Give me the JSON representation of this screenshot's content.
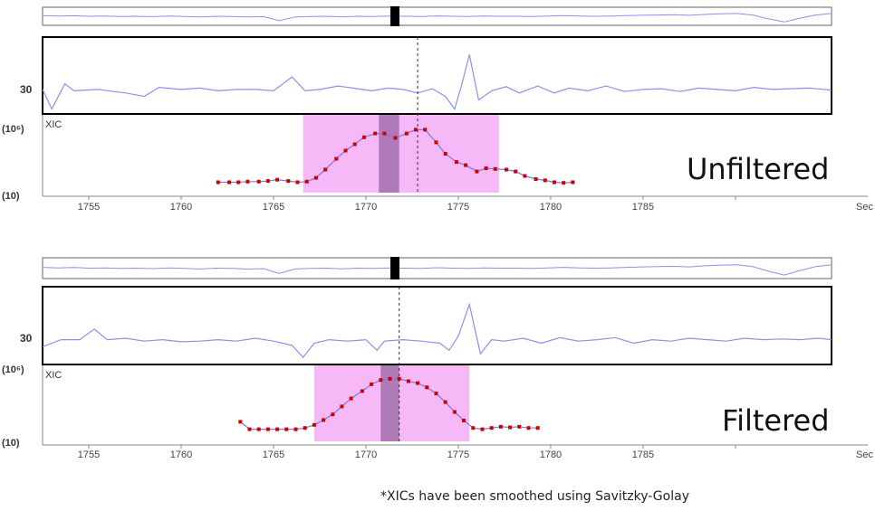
{
  "footnote": "*XICs have been smoothed using Savitzky-Golay",
  "colors": {
    "trace": "#8c8ff0",
    "xic_line": "#7a7ad8",
    "xic_point": "#cc0000",
    "window_fill": "#f6b8f6",
    "center_fill": "#b07ab8",
    "frame": "#000000",
    "axis_text": "#444444"
  },
  "chart_data": [
    {
      "type": "line",
      "name": "Unfiltered",
      "title": "Unfiltered",
      "ylabel_top": "(10⁶)",
      "ylabel_bottom": "(10)",
      "xic_label": "XIC",
      "trace_label": "30",
      "xlabel": "Sec",
      "xlim": [
        1752.5,
        1795.2
      ],
      "x_ticks": [
        1755,
        1760,
        1765,
        1770,
        1775,
        1780,
        1785,
        1790
      ],
      "x_tick_labels": [
        "1755",
        "1760",
        "1765",
        "1770",
        "1775",
        "1780",
        "1785",
        "Sec"
      ],
      "integration_window": [
        1766.6,
        1777.2
      ],
      "center_band": [
        1770.7,
        1771.8
      ],
      "marker_x": 1772.8,
      "xic_points": [
        [
          1762.0,
          0.05
        ],
        [
          1762.6,
          0.05
        ],
        [
          1763.1,
          0.05
        ],
        [
          1763.6,
          0.06
        ],
        [
          1764.2,
          0.06
        ],
        [
          1764.7,
          0.07
        ],
        [
          1765.2,
          0.09
        ],
        [
          1765.8,
          0.07
        ],
        [
          1766.3,
          0.05
        ],
        [
          1766.8,
          0.06
        ],
        [
          1767.3,
          0.12
        ],
        [
          1767.8,
          0.25
        ],
        [
          1768.4,
          0.42
        ],
        [
          1768.9,
          0.55
        ],
        [
          1769.4,
          0.65
        ],
        [
          1769.9,
          0.76
        ],
        [
          1770.5,
          0.82
        ],
        [
          1771.0,
          0.82
        ],
        [
          1771.6,
          0.75
        ],
        [
          1772.2,
          0.82
        ],
        [
          1772.7,
          0.88
        ],
        [
          1773.2,
          0.88
        ],
        [
          1773.8,
          0.68
        ],
        [
          1774.3,
          0.5
        ],
        [
          1774.9,
          0.37
        ],
        [
          1775.4,
          0.32
        ],
        [
          1776.0,
          0.22
        ],
        [
          1776.5,
          0.27
        ],
        [
          1777.0,
          0.26
        ],
        [
          1777.6,
          0.25
        ],
        [
          1778.1,
          0.22
        ],
        [
          1778.6,
          0.15
        ],
        [
          1779.2,
          0.1
        ],
        [
          1779.7,
          0.08
        ],
        [
          1780.2,
          0.05
        ],
        [
          1780.7,
          0.04
        ],
        [
          1781.2,
          0.05
        ]
      ],
      "overview_trace": [
        0.55,
        0.52,
        0.54,
        0.5,
        0.52,
        0.48,
        0.5,
        0.47,
        0.52,
        0.48,
        0.45,
        0.5,
        0.48,
        0.44,
        0.47,
        0.15,
        0.45,
        0.48,
        0.5,
        0.46,
        0.5,
        0.48,
        0.52,
        0.5,
        0.48,
        0.53,
        0.5,
        0.48,
        0.52,
        0.5,
        0.5,
        0.48,
        0.52,
        0.55,
        0.52,
        0.5,
        0.52,
        0.55,
        0.58,
        0.6,
        0.62,
        0.58,
        0.65,
        0.7,
        0.72,
        0.6,
        0.3,
        0.05,
        0.35,
        0.6,
        0.72
      ],
      "detail_trace": [
        [
          1752.5,
          0.3
        ],
        [
          1753.0,
          0.02
        ],
        [
          1753.7,
          0.38
        ],
        [
          1754.2,
          0.28
        ],
        [
          1755.5,
          0.3
        ],
        [
          1757.0,
          0.25
        ],
        [
          1758.0,
          0.2
        ],
        [
          1758.8,
          0.33
        ],
        [
          1760.0,
          0.3
        ],
        [
          1761.0,
          0.32
        ],
        [
          1762.0,
          0.28
        ],
        [
          1763.0,
          0.3
        ],
        [
          1764.0,
          0.3
        ],
        [
          1765.0,
          0.28
        ],
        [
          1765.6,
          0.4
        ],
        [
          1766.0,
          0.48
        ],
        [
          1766.7,
          0.28
        ],
        [
          1767.5,
          0.3
        ],
        [
          1768.5,
          0.35
        ],
        [
          1769.3,
          0.32
        ],
        [
          1770.3,
          0.28
        ],
        [
          1771.2,
          0.32
        ],
        [
          1772.0,
          0.3
        ],
        [
          1772.8,
          0.25
        ],
        [
          1773.6,
          0.31
        ],
        [
          1774.3,
          0.2
        ],
        [
          1774.8,
          0.02
        ],
        [
          1775.2,
          0.38
        ],
        [
          1775.6,
          0.8
        ],
        [
          1776.1,
          0.15
        ],
        [
          1776.8,
          0.28
        ],
        [
          1777.6,
          0.34
        ],
        [
          1778.3,
          0.25
        ],
        [
          1779.3,
          0.35
        ],
        [
          1780.2,
          0.25
        ],
        [
          1781.0,
          0.32
        ],
        [
          1782.0,
          0.28
        ],
        [
          1783.0,
          0.35
        ],
        [
          1784.0,
          0.27
        ],
        [
          1785.0,
          0.3
        ],
        [
          1786.0,
          0.31
        ],
        [
          1787.0,
          0.27
        ],
        [
          1788.0,
          0.32
        ],
        [
          1789.0,
          0.3
        ],
        [
          1790.0,
          0.28
        ],
        [
          1791.0,
          0.33
        ],
        [
          1792.0,
          0.3
        ],
        [
          1793.0,
          0.31
        ],
        [
          1794.0,
          0.32
        ],
        [
          1795.2,
          0.29
        ]
      ]
    },
    {
      "type": "line",
      "name": "Filtered",
      "title": "Filtered",
      "ylabel_top": "(10⁶)",
      "ylabel_bottom": "(10)",
      "xic_label": "XIC",
      "trace_label": "30",
      "xlabel": "Sec",
      "xlim": [
        1752.5,
        1795.2
      ],
      "x_ticks": [
        1755,
        1760,
        1765,
        1770,
        1775,
        1780,
        1785,
        1790
      ],
      "x_tick_labels": [
        "1755",
        "1760",
        "1765",
        "1770",
        "1775",
        "1780",
        "1785",
        "Sec"
      ],
      "integration_window": [
        1767.2,
        1775.6
      ],
      "center_band": [
        1770.8,
        1771.8
      ],
      "marker_x": 1771.8,
      "xic_points": [
        [
          1763.2,
          0.2
        ],
        [
          1763.7,
          0.08
        ],
        [
          1764.2,
          0.08
        ],
        [
          1764.7,
          0.08
        ],
        [
          1765.2,
          0.08
        ],
        [
          1765.7,
          0.08
        ],
        [
          1766.2,
          0.08
        ],
        [
          1766.7,
          0.1
        ],
        [
          1767.2,
          0.15
        ],
        [
          1767.7,
          0.23
        ],
        [
          1768.2,
          0.32
        ],
        [
          1768.7,
          0.45
        ],
        [
          1769.2,
          0.58
        ],
        [
          1769.8,
          0.7
        ],
        [
          1770.3,
          0.81
        ],
        [
          1770.8,
          0.88
        ],
        [
          1771.3,
          0.9
        ],
        [
          1771.8,
          0.9
        ],
        [
          1772.3,
          0.86
        ],
        [
          1772.8,
          0.83
        ],
        [
          1773.3,
          0.76
        ],
        [
          1773.8,
          0.66
        ],
        [
          1774.3,
          0.52
        ],
        [
          1774.8,
          0.36
        ],
        [
          1775.3,
          0.22
        ],
        [
          1775.8,
          0.1
        ],
        [
          1776.3,
          0.08
        ],
        [
          1776.8,
          0.1
        ],
        [
          1777.3,
          0.12
        ],
        [
          1777.8,
          0.11
        ],
        [
          1778.3,
          0.12
        ],
        [
          1778.8,
          0.1
        ],
        [
          1779.3,
          0.1
        ]
      ],
      "overview_trace": [
        0.55,
        0.52,
        0.54,
        0.5,
        0.52,
        0.48,
        0.5,
        0.47,
        0.52,
        0.48,
        0.45,
        0.5,
        0.48,
        0.44,
        0.47,
        0.15,
        0.45,
        0.48,
        0.5,
        0.46,
        0.5,
        0.48,
        0.52,
        0.5,
        0.48,
        0.53,
        0.5,
        0.48,
        0.52,
        0.5,
        0.5,
        0.48,
        0.52,
        0.55,
        0.52,
        0.5,
        0.52,
        0.55,
        0.58,
        0.6,
        0.62,
        0.58,
        0.65,
        0.7,
        0.72,
        0.6,
        0.3,
        0.05,
        0.35,
        0.6,
        0.72
      ],
      "detail_trace": [
        [
          1752.5,
          0.2
        ],
        [
          1753.5,
          0.3
        ],
        [
          1754.5,
          0.3
        ],
        [
          1755.3,
          0.45
        ],
        [
          1756.0,
          0.3
        ],
        [
          1757.0,
          0.32
        ],
        [
          1758.0,
          0.28
        ],
        [
          1759.0,
          0.3
        ],
        [
          1760.0,
          0.27
        ],
        [
          1761.0,
          0.28
        ],
        [
          1762.0,
          0.3
        ],
        [
          1763.0,
          0.28
        ],
        [
          1764.0,
          0.32
        ],
        [
          1765.0,
          0.28
        ],
        [
          1766.0,
          0.22
        ],
        [
          1766.6,
          0.05
        ],
        [
          1767.2,
          0.25
        ],
        [
          1768.0,
          0.3
        ],
        [
          1769.0,
          0.28
        ],
        [
          1770.0,
          0.3
        ],
        [
          1770.6,
          0.15
        ],
        [
          1771.0,
          0.28
        ],
        [
          1772.0,
          0.3
        ],
        [
          1773.0,
          0.28
        ],
        [
          1774.0,
          0.25
        ],
        [
          1774.5,
          0.15
        ],
        [
          1775.0,
          0.35
        ],
        [
          1775.6,
          0.8
        ],
        [
          1776.2,
          0.1
        ],
        [
          1776.8,
          0.3
        ],
        [
          1777.5,
          0.28
        ],
        [
          1778.5,
          0.32
        ],
        [
          1779.5,
          0.25
        ],
        [
          1780.5,
          0.33
        ],
        [
          1781.5,
          0.28
        ],
        [
          1782.5,
          0.3
        ],
        [
          1783.5,
          0.33
        ],
        [
          1784.5,
          0.25
        ],
        [
          1785.5,
          0.3
        ],
        [
          1786.5,
          0.28
        ],
        [
          1787.5,
          0.32
        ],
        [
          1788.5,
          0.3
        ],
        [
          1789.5,
          0.28
        ],
        [
          1790.5,
          0.32
        ],
        [
          1791.5,
          0.3
        ],
        [
          1792.5,
          0.31
        ],
        [
          1793.5,
          0.3
        ],
        [
          1794.5,
          0.32
        ],
        [
          1795.2,
          0.3
        ]
      ]
    }
  ]
}
